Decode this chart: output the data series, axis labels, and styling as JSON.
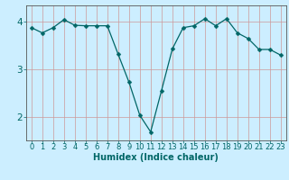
{
  "x": [
    0,
    1,
    2,
    3,
    4,
    5,
    6,
    7,
    8,
    9,
    10,
    11,
    12,
    13,
    14,
    15,
    16,
    17,
    18,
    19,
    20,
    21,
    22,
    23
  ],
  "y": [
    3.88,
    3.77,
    3.88,
    4.05,
    3.93,
    3.92,
    3.92,
    3.92,
    3.32,
    2.73,
    2.03,
    1.68,
    2.55,
    3.43,
    3.88,
    3.92,
    4.07,
    3.92,
    4.07,
    3.77,
    3.65,
    3.42,
    3.42,
    3.3
  ],
  "line_color": "#006666",
  "marker": "D",
  "marker_size": 2.5,
  "bg_color": "#cceeff",
  "grid_color": "#cc9999",
  "xlabel": "Humidex (Indice chaleur)",
  "xlim": [
    -0.5,
    23.5
  ],
  "ylim": [
    1.5,
    4.35
  ],
  "yticks": [
    2,
    3,
    4
  ],
  "xticks": [
    0,
    1,
    2,
    3,
    4,
    5,
    6,
    7,
    8,
    9,
    10,
    11,
    12,
    13,
    14,
    15,
    16,
    17,
    18,
    19,
    20,
    21,
    22,
    23
  ],
  "xtick_labels": [
    "0",
    "1",
    "2",
    "3",
    "4",
    "5",
    "6",
    "7",
    "8",
    "9",
    "10",
    "11",
    "12",
    "13",
    "14",
    "15",
    "16",
    "17",
    "18",
    "19",
    "20",
    "21",
    "22",
    "23"
  ],
  "tick_color": "#006666",
  "xlabel_fontsize": 7,
  "tick_fontsize": 6,
  "ytick_fontsize": 7.5
}
